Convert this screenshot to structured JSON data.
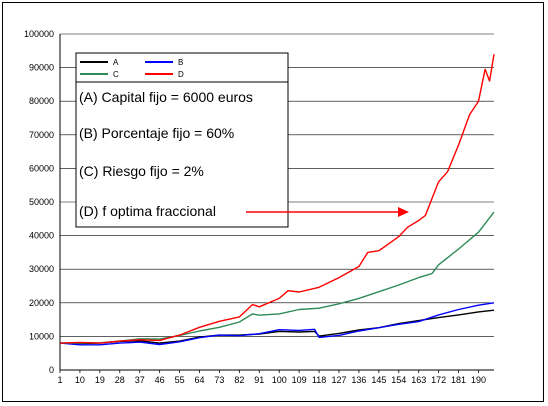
{
  "chart_data": {
    "type": "line",
    "title": "",
    "xlabel": "",
    "ylabel": "",
    "x_ticks": [
      "1",
      "10",
      "19",
      "28",
      "37",
      "46",
      "55",
      "64",
      "73",
      "82",
      "91",
      "100",
      "109",
      "118",
      "127",
      "136",
      "145",
      "154",
      "163",
      "172",
      "181",
      "190"
    ],
    "y_ticks": [
      "0",
      "10000",
      "20000",
      "30000",
      "40000",
      "50000",
      "60000",
      "70000",
      "80000",
      "90000",
      "100000"
    ],
    "xlim": [
      1,
      197
    ],
    "ylim": [
      0,
      100000
    ],
    "grid": "horizontal",
    "legend_position": "top-left",
    "series": [
      {
        "name": "A",
        "color": "#000000",
        "points": [
          [
            1,
            8000
          ],
          [
            10,
            7900
          ],
          [
            19,
            8000
          ],
          [
            28,
            8500
          ],
          [
            37,
            8700
          ],
          [
            46,
            8000
          ],
          [
            55,
            8600
          ],
          [
            64,
            9800
          ],
          [
            73,
            10400
          ],
          [
            82,
            10400
          ],
          [
            91,
            10700
          ],
          [
            100,
            11500
          ],
          [
            109,
            11300
          ],
          [
            116,
            11500
          ],
          [
            118,
            10100
          ],
          [
            127,
            10900
          ],
          [
            136,
            11900
          ],
          [
            145,
            12600
          ],
          [
            154,
            13800
          ],
          [
            163,
            14700
          ],
          [
            172,
            15600
          ],
          [
            181,
            16400
          ],
          [
            190,
            17300
          ],
          [
            197,
            17800
          ]
        ]
      },
      {
        "name": "B",
        "color": "#0000ff",
        "points": [
          [
            1,
            8000
          ],
          [
            10,
            7500
          ],
          [
            19,
            7500
          ],
          [
            28,
            8000
          ],
          [
            37,
            8300
          ],
          [
            46,
            7600
          ],
          [
            55,
            8400
          ],
          [
            64,
            9600
          ],
          [
            73,
            10400
          ],
          [
            82,
            10200
          ],
          [
            91,
            10800
          ],
          [
            100,
            12000
          ],
          [
            109,
            11800
          ],
          [
            116,
            12100
          ],
          [
            118,
            9700
          ],
          [
            127,
            10300
          ],
          [
            136,
            11600
          ],
          [
            145,
            12600
          ],
          [
            154,
            13600
          ],
          [
            163,
            14400
          ],
          [
            172,
            16400
          ],
          [
            181,
            18000
          ],
          [
            190,
            19300
          ],
          [
            197,
            20000
          ]
        ]
      },
      {
        "name": "C",
        "color": "#2e8b57",
        "points": [
          [
            1,
            8000
          ],
          [
            10,
            8000
          ],
          [
            19,
            8100
          ],
          [
            28,
            8600
          ],
          [
            37,
            9300
          ],
          [
            46,
            9200
          ],
          [
            55,
            10300
          ],
          [
            64,
            11600
          ],
          [
            73,
            12700
          ],
          [
            82,
            14300
          ],
          [
            88,
            16700
          ],
          [
            91,
            16300
          ],
          [
            100,
            16700
          ],
          [
            109,
            18000
          ],
          [
            118,
            18400
          ],
          [
            127,
            19700
          ],
          [
            136,
            21300
          ],
          [
            145,
            23300
          ],
          [
            154,
            25300
          ],
          [
            163,
            27500
          ],
          [
            169,
            28700
          ],
          [
            172,
            31300
          ],
          [
            181,
            36000
          ],
          [
            190,
            41000
          ],
          [
            197,
            47000
          ]
        ]
      },
      {
        "name": "D",
        "color": "#ff0000",
        "points": [
          [
            1,
            8000
          ],
          [
            10,
            8200
          ],
          [
            19,
            8000
          ],
          [
            28,
            8600
          ],
          [
            37,
            9000
          ],
          [
            46,
            8800
          ],
          [
            55,
            10400
          ],
          [
            64,
            12700
          ],
          [
            73,
            14500
          ],
          [
            82,
            15800
          ],
          [
            88,
            19500
          ],
          [
            91,
            18800
          ],
          [
            100,
            21300
          ],
          [
            104,
            23600
          ],
          [
            109,
            23200
          ],
          [
            118,
            24600
          ],
          [
            127,
            27500
          ],
          [
            136,
            30800
          ],
          [
            140,
            35000
          ],
          [
            145,
            35500
          ],
          [
            154,
            39700
          ],
          [
            158,
            42500
          ],
          [
            163,
            44500
          ],
          [
            166,
            46000
          ],
          [
            172,
            56000
          ],
          [
            176,
            59000
          ],
          [
            181,
            67000
          ],
          [
            186,
            76000
          ],
          [
            190,
            80000
          ],
          [
            193,
            89500
          ],
          [
            195,
            86000
          ],
          [
            197,
            94000
          ]
        ]
      }
    ]
  },
  "annotations": [
    "(A) Capital fijo = 6000 euros",
    "(B) Porcentaje fijo = 60%",
    "(C) Riesgo fijo = 2%",
    "(D) f optima fraccional"
  ]
}
